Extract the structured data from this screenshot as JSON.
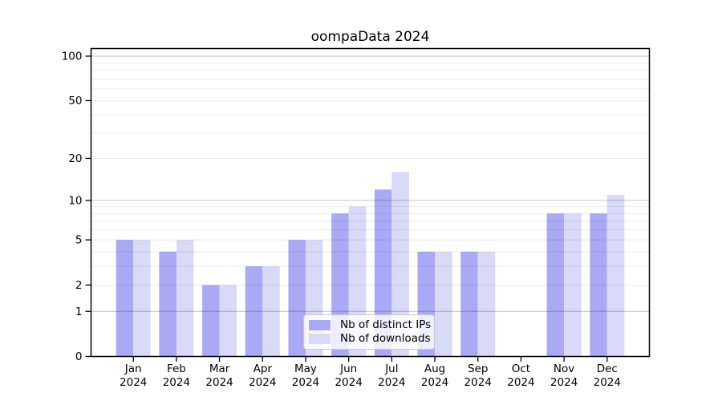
{
  "chart_data": {
    "type": "bar",
    "title": "oompaData 2024",
    "categories": [
      "Jan",
      "Feb",
      "Mar",
      "Apr",
      "May",
      "Jun",
      "Jul",
      "Aug",
      "Sep",
      "Oct",
      "Nov",
      "Dec"
    ],
    "category_year": "2024",
    "series": [
      {
        "name": "Nb of distinct IPs",
        "color": "#a9a9f5",
        "values": [
          5,
          4,
          2,
          3,
          5,
          8,
          12,
          4,
          4,
          0,
          8,
          8
        ]
      },
      {
        "name": "Nb of downloads",
        "color": "#d9d9f8",
        "values": [
          5,
          5,
          2,
          3,
          5,
          9,
          16,
          4,
          4,
          0,
          8,
          11
        ]
      }
    ],
    "xlabel": "",
    "ylabel": "",
    "y_axis": {
      "scale": "log1p",
      "tick_values": [
        0,
        1,
        2,
        5,
        10,
        20,
        50,
        100
      ],
      "tick_labels": [
        "0",
        "1",
        "2",
        "5",
        "10",
        "20",
        "50",
        "100"
      ],
      "major_grid_values": [
        1,
        10,
        100
      ],
      "minor_grid_values": [
        2,
        3,
        4,
        5,
        6,
        7,
        8,
        9,
        20,
        30,
        40,
        50,
        60,
        70,
        80,
        90
      ],
      "ylim_top_value": 113
    },
    "grid": true,
    "legend_position": "inside-bottom-center",
    "colors": {
      "major_grid": "rgba(0,0,0,0.20)",
      "minor_grid": "rgba(0,0,0,0.075)",
      "frame": "#000000",
      "text": "#000000",
      "legend_border": "#c9c9c9"
    }
  }
}
